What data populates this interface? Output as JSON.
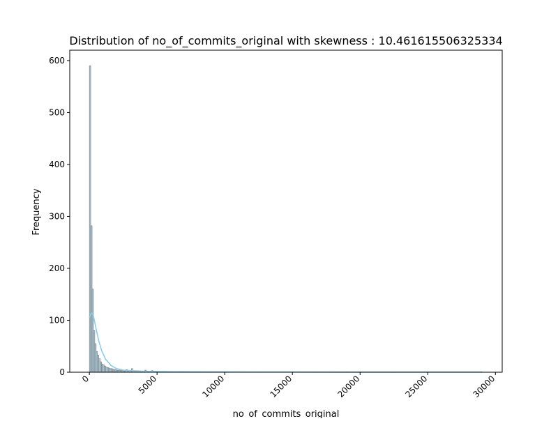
{
  "chart_data": {
    "type": "bar",
    "title": "Distribution of no_of_commits_original with skewness : 10.461615506325334",
    "xlabel": "no_of_commits_original",
    "ylabel": "Frequency",
    "xlim": [
      -1450,
      30500
    ],
    "ylim": [
      0,
      620
    ],
    "xticks": [
      0,
      5000,
      10000,
      15000,
      20000,
      25000,
      30000
    ],
    "xtick_labels": [
      "0",
      "5000",
      "10000",
      "15000",
      "20000",
      "25000",
      "30000"
    ],
    "yticks": [
      0,
      100,
      200,
      300,
      400,
      500,
      600
    ],
    "ytick_labels": [
      "0",
      "100",
      "200",
      "300",
      "400",
      "500",
      "600"
    ],
    "grid": false,
    "legend": "none",
    "bin_width": 100,
    "bins": {
      "x_start": [
        0,
        100,
        200,
        300,
        400,
        500,
        600,
        700,
        800,
        900,
        1000,
        1100,
        1200,
        1300,
        1400,
        1500,
        1600,
        1700,
        1800,
        1900,
        2000,
        2100,
        2200,
        2300,
        2400,
        2500,
        2600,
        2700,
        2800,
        2900,
        3000,
        3100,
        3200,
        3300,
        3400,
        3500,
        3600,
        3700,
        3800,
        3900,
        4000,
        4100,
        4200,
        4300,
        4400,
        4500,
        4600,
        4700,
        4800,
        4900,
        5000,
        5100,
        5300,
        5600,
        6000,
        6500,
        7200,
        8000,
        9000,
        11000,
        13000,
        15500,
        19000,
        22500,
        28900
      ],
      "frequency": [
        590,
        282,
        160,
        80,
        55,
        40,
        33,
        26,
        20,
        16,
        14,
        12,
        10,
        9,
        8,
        7,
        7,
        6,
        5,
        5,
        4,
        4,
        4,
        3,
        3,
        3,
        3,
        5,
        4,
        3,
        3,
        7,
        3,
        3,
        3,
        2,
        2,
        2,
        2,
        2,
        2,
        4,
        2,
        2,
        2,
        2,
        3,
        2,
        1,
        1,
        1,
        1,
        1,
        1,
        1,
        1,
        1,
        1,
        1,
        1,
        1,
        1,
        1,
        1,
        1
      ]
    },
    "kde": {
      "x": [
        0,
        100,
        200,
        300,
        400,
        500,
        700,
        900,
        1200,
        1600,
        2000,
        2500,
        3000,
        3500,
        4000,
        5000,
        6000,
        8000,
        10000,
        15000,
        20000,
        25000,
        29000
      ],
      "y": [
        105,
        112,
        114,
        108,
        96,
        83,
        60,
        42,
        25,
        13,
        7,
        4,
        3,
        2.4,
        2,
        1.5,
        1.1,
        0.8,
        0.6,
        0.4,
        0.3,
        0.3,
        0.3
      ]
    },
    "colors": {
      "bar_fill": "#a7c7d6",
      "bar_edge": "#7b7b7b",
      "kde_line": "#87ceeb",
      "axis": "#000000",
      "text": "#000000"
    }
  }
}
